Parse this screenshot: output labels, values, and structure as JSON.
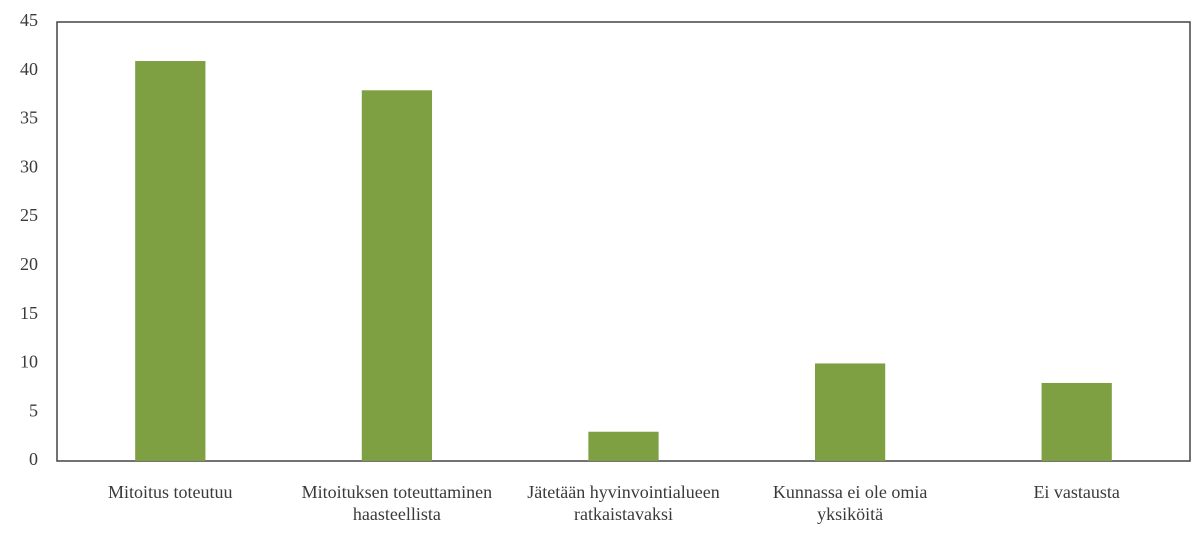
{
  "chart_data": {
    "type": "bar",
    "categories": [
      "Mitoitus toteutuu",
      "Mitoituksen toteuttaminen haasteellista",
      "Jätetään hyvinvointialueen ratkaistavaksi",
      "Kunnassa ei ole omia yksiköitä",
      "Ei vastausta"
    ],
    "values": [
      41,
      38,
      3,
      10,
      8
    ],
    "color": "#7ea042",
    "ylim": [
      0,
      45
    ],
    "yticks": [
      0,
      5,
      10,
      15,
      20,
      25,
      30,
      35,
      40,
      45
    ],
    "grid": false
  }
}
